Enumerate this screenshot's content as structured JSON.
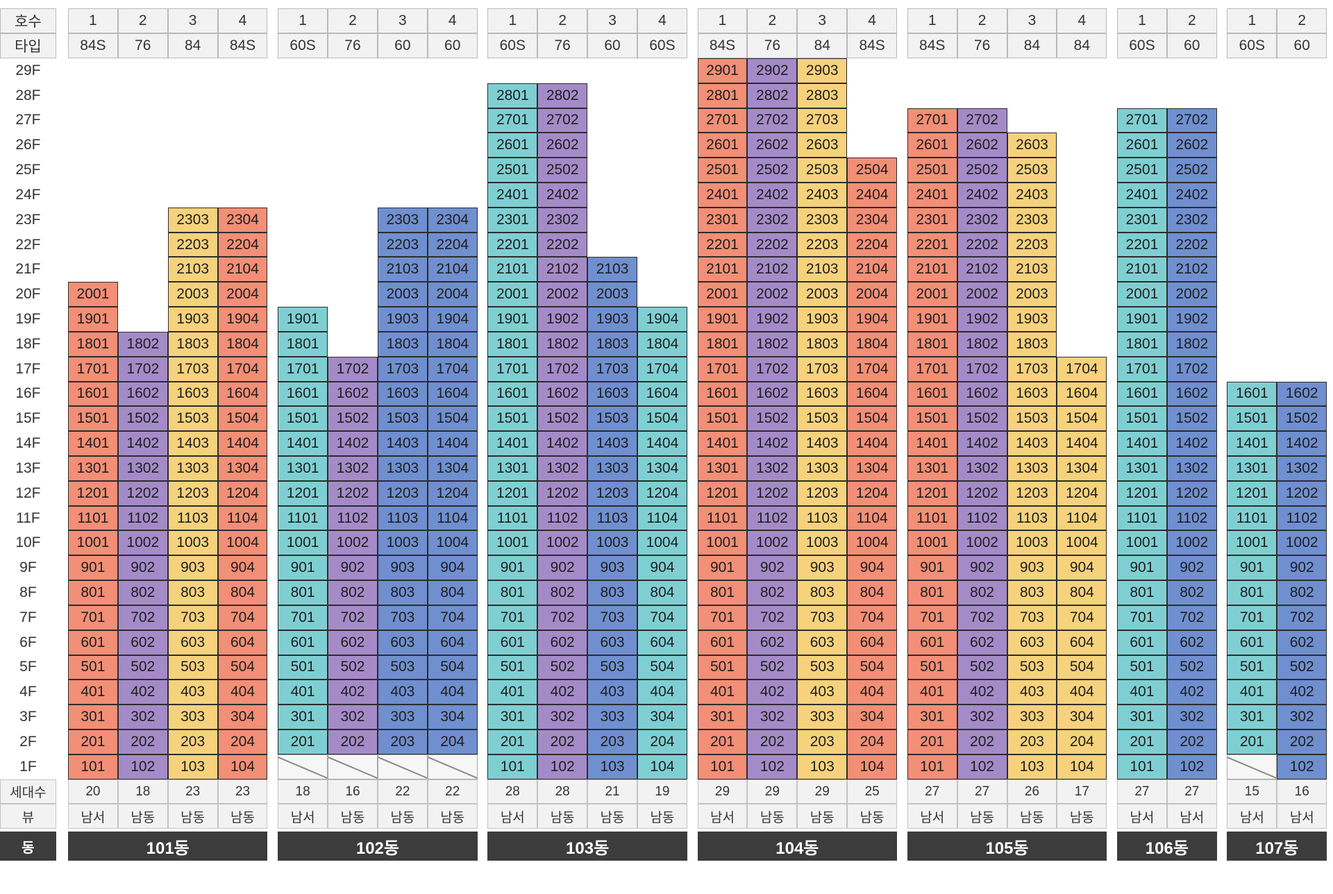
{
  "row_labels": {
    "unit_no": "호수",
    "type": "타입",
    "households": "세대수",
    "view": "뷰",
    "building": "동"
  },
  "floors": [
    "29F",
    "28F",
    "27F",
    "26F",
    "25F",
    "24F",
    "23F",
    "22F",
    "21F",
    "20F",
    "19F",
    "18F",
    "17F",
    "16F",
    "15F",
    "14F",
    "13F",
    "12F",
    "11F",
    "10F",
    "9F",
    "8F",
    "7F",
    "6F",
    "5F",
    "4F",
    "3F",
    "2F",
    "1F"
  ],
  "colors": {
    "84S": "#f28f76",
    "76": "#a48bc8",
    "84": "#f6d27d",
    "60S": "#7fcfd2",
    "60": "#6f8fcf"
  },
  "buildings": [
    {
      "name": "101동",
      "columns": [
        {
          "num": "1",
          "type": "84S",
          "top_floor": 20,
          "bottom_floor": 1,
          "households": "20",
          "view": "남서"
        },
        {
          "num": "2",
          "type": "76",
          "top_floor": 18,
          "bottom_floor": 1,
          "households": "18",
          "view": "남동"
        },
        {
          "num": "3",
          "type": "84",
          "top_floor": 23,
          "bottom_floor": 1,
          "households": "23",
          "view": "남동"
        },
        {
          "num": "4",
          "type": "84S",
          "top_floor": 23,
          "bottom_floor": 1,
          "households": "23",
          "view": "남동"
        }
      ]
    },
    {
      "name": "102동",
      "columns": [
        {
          "num": "1",
          "type": "60S",
          "top_floor": 19,
          "bottom_floor": 2,
          "households": "18",
          "view": "남서"
        },
        {
          "num": "2",
          "type": "76",
          "top_floor": 17,
          "bottom_floor": 2,
          "households": "16",
          "view": "남동"
        },
        {
          "num": "3",
          "type": "60",
          "top_floor": 23,
          "bottom_floor": 2,
          "households": "22",
          "view": "남동"
        },
        {
          "num": "4",
          "type": "60",
          "top_floor": 23,
          "bottom_floor": 2,
          "households": "22",
          "view": "남동"
        }
      ]
    },
    {
      "name": "103동",
      "columns": [
        {
          "num": "1",
          "type": "60S",
          "top_floor": 28,
          "bottom_floor": 1,
          "households": "28",
          "view": "남서"
        },
        {
          "num": "2",
          "type": "76",
          "top_floor": 28,
          "bottom_floor": 1,
          "households": "28",
          "view": "남동"
        },
        {
          "num": "3",
          "type": "60",
          "top_floor": 21,
          "bottom_floor": 1,
          "households": "21",
          "view": "남동"
        },
        {
          "num": "4",
          "type": "60S",
          "top_floor": 19,
          "bottom_floor": 1,
          "households": "19",
          "view": "남동"
        }
      ]
    },
    {
      "name": "104동",
      "columns": [
        {
          "num": "1",
          "type": "84S",
          "top_floor": 29,
          "bottom_floor": 1,
          "households": "29",
          "view": "남서"
        },
        {
          "num": "2",
          "type": "76",
          "top_floor": 29,
          "bottom_floor": 1,
          "households": "29",
          "view": "남동"
        },
        {
          "num": "3",
          "type": "84",
          "top_floor": 29,
          "bottom_floor": 1,
          "households": "29",
          "view": "남동"
        },
        {
          "num": "4",
          "type": "84S",
          "top_floor": 25,
          "bottom_floor": 1,
          "households": "25",
          "view": "남동"
        }
      ]
    },
    {
      "name": "105동",
      "columns": [
        {
          "num": "1",
          "type": "84S",
          "top_floor": 27,
          "bottom_floor": 1,
          "households": "27",
          "view": "남서"
        },
        {
          "num": "2",
          "type": "76",
          "top_floor": 27,
          "bottom_floor": 1,
          "households": "27",
          "view": "남동"
        },
        {
          "num": "3",
          "type": "84",
          "top_floor": 26,
          "bottom_floor": 1,
          "households": "26",
          "view": "남동"
        },
        {
          "num": "4",
          "type": "84",
          "top_floor": 17,
          "bottom_floor": 1,
          "households": "17",
          "view": "남동"
        }
      ]
    },
    {
      "name": "106동",
      "columns": [
        {
          "num": "1",
          "type": "60S",
          "top_floor": 27,
          "bottom_floor": 1,
          "households": "27",
          "view": "남서"
        },
        {
          "num": "2",
          "type": "60",
          "top_floor": 27,
          "bottom_floor": 1,
          "households": "27",
          "view": "남서"
        }
      ]
    },
    {
      "name": "107동",
      "columns": [
        {
          "num": "1",
          "type": "60S",
          "top_floor": 16,
          "bottom_floor": 2,
          "households": "15",
          "view": "남서"
        },
        {
          "num": "2",
          "type": "60",
          "top_floor": 16,
          "bottom_floor": 1,
          "households": "16",
          "view": "남서"
        }
      ]
    }
  ]
}
